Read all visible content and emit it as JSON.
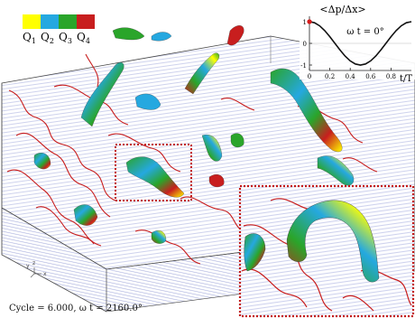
{
  "legend": {
    "quadrants": [
      {
        "label": "Q",
        "sub": "1",
        "color": "#ffff00"
      },
      {
        "label": "Q",
        "sub": "2",
        "color": "#25a8e0"
      },
      {
        "label": "Q",
        "sub": "3",
        "color": "#2aa52a"
      },
      {
        "label": "Q",
        "sub": "4",
        "color": "#c81e1e"
      }
    ]
  },
  "inset": {
    "ylabel": "<Δp/Δx>",
    "phase_label": "ω t = 0°",
    "xlabel": "t/T",
    "yticks": [
      "1",
      "0",
      "-1"
    ],
    "xticks": [
      "0",
      "0.2",
      "0.4",
      "0.6",
      "0.8"
    ]
  },
  "chart_data": {
    "type": "line",
    "title": "",
    "xlabel": "t/T",
    "ylabel": "<Δp/Δx>",
    "xlim": [
      0,
      1
    ],
    "ylim": [
      -1.25,
      1.25
    ],
    "series": [
      {
        "x": [
          0,
          0.05,
          0.1,
          0.15,
          0.2,
          0.25,
          0.3,
          0.35,
          0.4,
          0.45,
          0.5,
          0.55,
          0.6,
          0.65,
          0.7,
          0.75,
          0.8,
          0.85,
          0.9,
          0.95,
          1.0
        ],
        "y": [
          1,
          0.951,
          0.809,
          0.588,
          0.309,
          0,
          -0.309,
          -0.588,
          -0.809,
          -0.951,
          -1,
          -0.951,
          -0.809,
          -0.588,
          -0.309,
          0,
          0.309,
          0.588,
          0.809,
          0.951,
          1
        ],
        "color": "#111111"
      }
    ],
    "marker": {
      "x": 0,
      "y": 1,
      "color": "#d61a1a"
    }
  },
  "axes_triad": {
    "y": "y",
    "z": "z",
    "x": "x"
  },
  "caption": {
    "text": "Cycle = 6.000, ω t = 2160.0°"
  },
  "colors": {
    "zoom_box": "#c21818",
    "contour": "#c81e1e"
  }
}
